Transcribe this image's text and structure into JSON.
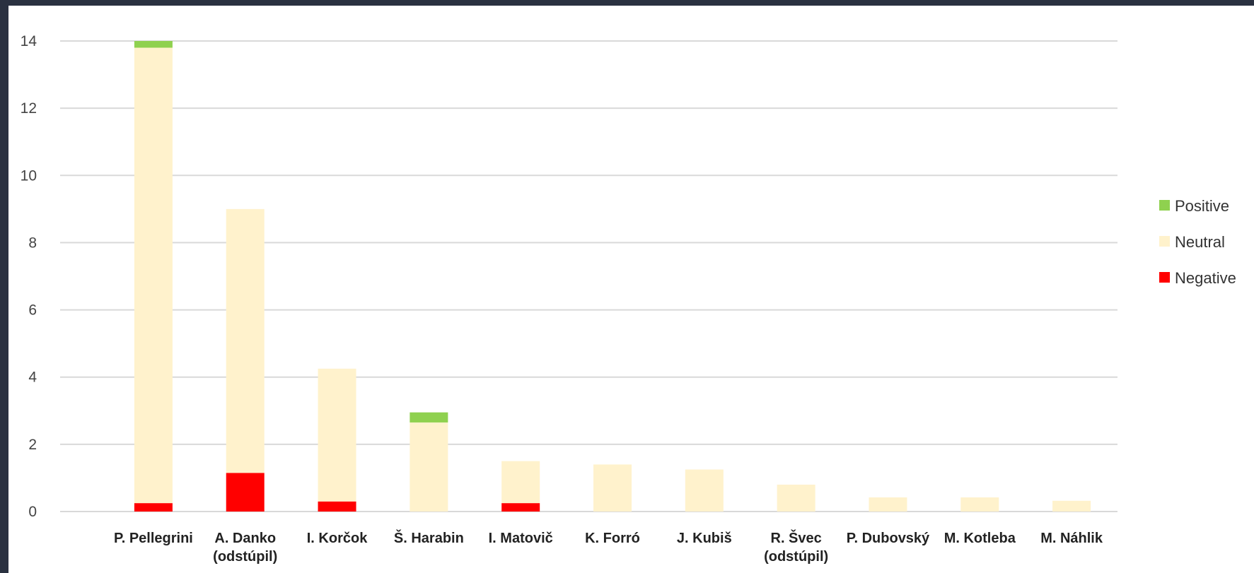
{
  "chart_data": {
    "type": "bar",
    "stacked": true,
    "categories": [
      [
        "P. Pellegrini"
      ],
      [
        "A. Danko",
        "(odstúpil)"
      ],
      [
        "I. Korčok"
      ],
      [
        "Š. Harabin"
      ],
      [
        "I. Matovič"
      ],
      [
        "K. Forró"
      ],
      [
        "J. Kubiš"
      ],
      [
        "R. Švec",
        "(odstúpil)"
      ],
      [
        "P. Dubovský"
      ],
      [
        "M. Kotleba"
      ],
      [
        "M. Náhlik"
      ]
    ],
    "series": [
      {
        "name": "Negative",
        "color": "#ff0000",
        "values": [
          0.25,
          1.15,
          0.3,
          0,
          0.25,
          0,
          0,
          0,
          0,
          0,
          0
        ]
      },
      {
        "name": "Neutral",
        "color": "#fff2cc",
        "values": [
          13.55,
          7.85,
          3.95,
          2.65,
          1.25,
          1.4,
          1.25,
          0.8,
          0.42,
          0.42,
          0.32
        ]
      },
      {
        "name": "Positive",
        "color": "#8fd14f",
        "values": [
          0.2,
          0,
          0,
          0.3,
          0,
          0,
          0,
          0,
          0,
          0,
          0
        ]
      }
    ],
    "legend_order": [
      "Positive",
      "Neutral",
      "Negative"
    ],
    "y_ticks": [
      0,
      2,
      4,
      6,
      8,
      10,
      12,
      14
    ],
    "ylim": [
      0,
      14
    ],
    "grid": true,
    "legend_position": "right",
    "title": "",
    "xlabel": "",
    "ylabel": ""
  }
}
